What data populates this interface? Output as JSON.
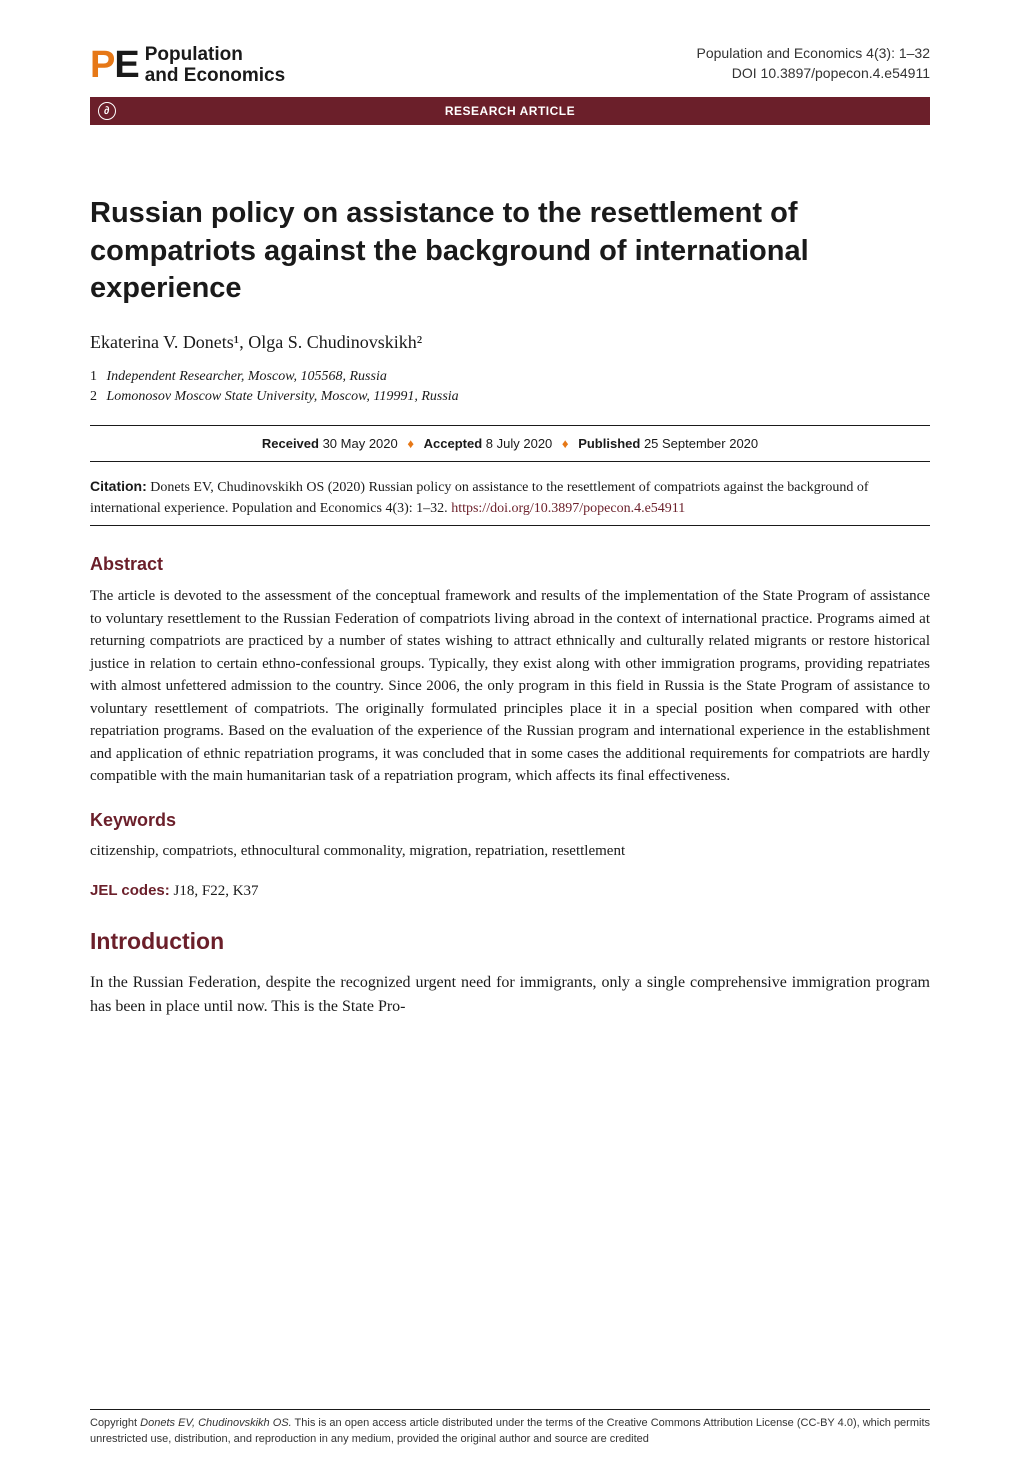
{
  "header": {
    "logo_pe_p": "P",
    "logo_pe_e": "E",
    "logo_line1": "Population",
    "logo_line2": "and Economics",
    "journal_ref": "Population and Economics 4(3): 1–32",
    "doi": "DOI 10.3897/popecon.4.e54911"
  },
  "banner": {
    "label": "RESEARCH ARTICLE",
    "oa_glyph": "∂"
  },
  "title": "Russian policy on assistance to the resettlement of compatriots against the background of international experience",
  "authors": "Ekaterina V. Donets¹, Olga S. Chudinovskikh²",
  "affiliations": [
    {
      "num": "1",
      "text": "Independent Researcher, Moscow, 105568, Russia"
    },
    {
      "num": "2",
      "text": "Lomonosov Moscow State University, Moscow, 119991, Russia"
    }
  ],
  "dates": {
    "received_label": "Received",
    "received": "30 May 2020",
    "accepted_label": "Accepted",
    "accepted": "8 July 2020",
    "published_label": "Published",
    "published": "25 September 2020"
  },
  "citation": {
    "label": "Citation:",
    "text": "Donets EV, Chudinovskikh OS (2020) Russian policy on assistance to the resettlement of compatriots against the background of international experience. Population and Economics 4(3): 1–32. ",
    "link": "https://doi.org/10.3897/popecon.4.e54911"
  },
  "abstract": {
    "heading": "Abstract",
    "text": "The article is devoted to the assessment of the conceptual framework and results of the implementation of the State Program of assistance to voluntary resettlement to the Russian Federation of compatriots living abroad in the context of international practice. Programs aimed at returning compatriots are practiced by a number of states wishing to attract ethnically and culturally related migrants or restore historical justice in relation to certain ethno-confessional groups. Typically, they exist along with other immigration programs, providing repatriates with almost unfettered admission to the country. Since 2006, the only program in this field in Russia is the State Program of assistance to voluntary resettlement of compatriots. The originally formulated principles place it in a special position when compared with other repatriation programs. Based on the evaluation of the experience of the Russian program and international experience in the establishment and application of ethnic repatriation programs, it was concluded that in some cases the additional requirements for compatriots are hardly compatible with the main humanitarian task of a repatriation program, which affects its final effectiveness."
  },
  "keywords": {
    "heading": "Keywords",
    "text": "citizenship, compatriots, ethnocultural commonality, migration, repatriation, resettlement"
  },
  "jel": {
    "label": "JEL codes:",
    "text": " J18, F22, K37"
  },
  "intro": {
    "heading": "Introduction",
    "text": "In the Russian Federation, despite the recognized urgent need for immigrants, only a single comprehensive immigration program has been in place until now. This is the State Pro-"
  },
  "footer": {
    "copyright": "Copyright ",
    "authors_italic": "Donets EV, Chudinovskikh OS.",
    "rest": " This is an open access article distributed under the terms of the Creative Commons Attribution License (CC-BY 4.0), which permits unrestricted use, distribution, and reproduction in any medium, provided the original author and source are credited"
  },
  "colors": {
    "accent_orange": "#e67817",
    "accent_maroon": "#6b1f2a",
    "text": "#1a1a1a",
    "background": "#ffffff"
  }
}
